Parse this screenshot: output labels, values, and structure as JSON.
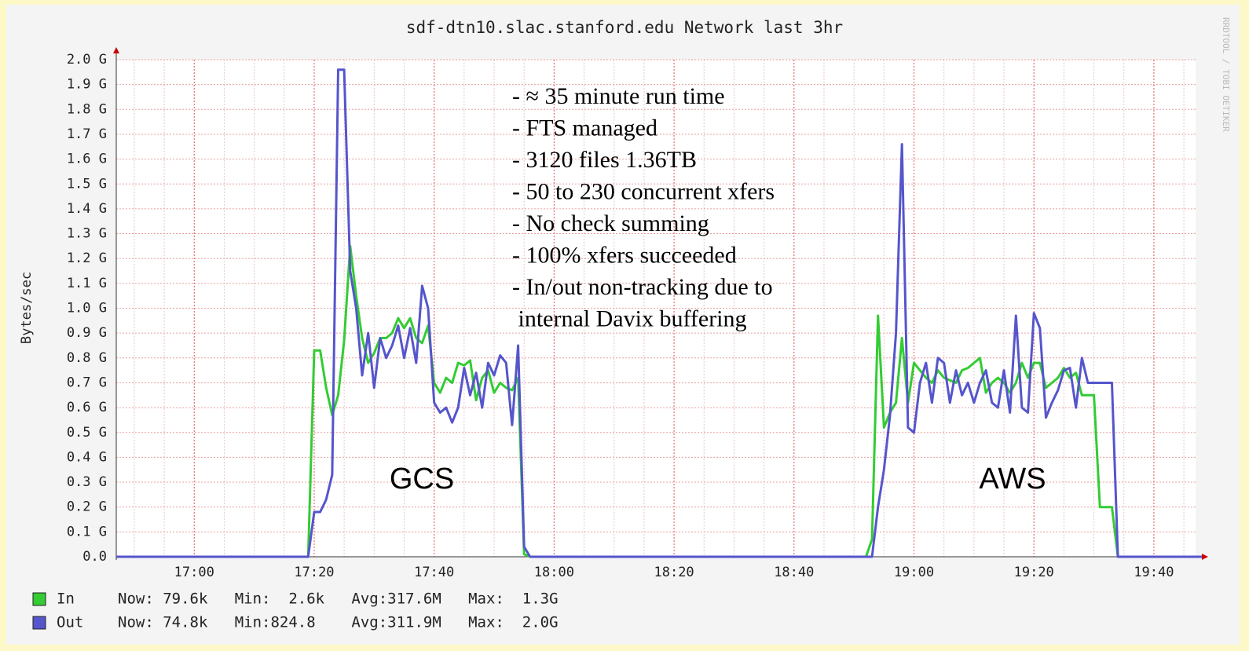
{
  "chart_data": {
    "type": "line",
    "title": "sdf-dtn10.slac.stanford.edu Network last 3hr",
    "y_label": "Bytes/sec",
    "side_text": "RRDTOOL / TOBI OETIKER",
    "xlim": [
      "16:47",
      "19:48"
    ],
    "xticks": [
      "17:00",
      "17:20",
      "17:40",
      "18:00",
      "18:20",
      "18:40",
      "19:00",
      "19:20",
      "19:40"
    ],
    "ylim": [
      0,
      2
    ],
    "yticks": [
      {
        "value": 0,
        "label": "0.0"
      },
      {
        "value": 0.1,
        "label": "0.1 G"
      },
      {
        "value": 0.2,
        "label": "0.2 G"
      },
      {
        "value": 0.3,
        "label": "0.3 G"
      },
      {
        "value": 0.4,
        "label": "0.4 G"
      },
      {
        "value": 0.5,
        "label": "0.5 G"
      },
      {
        "value": 0.6,
        "label": "0.6 G"
      },
      {
        "value": 0.7,
        "label": "0.7 G"
      },
      {
        "value": 0.8,
        "label": "0.8 G"
      },
      {
        "value": 0.9,
        "label": "0.9 G"
      },
      {
        "value": 1,
        "label": "1.0 G"
      },
      {
        "value": 1.1,
        "label": "1.1 G"
      },
      {
        "value": 1.2,
        "label": "1.2 G"
      },
      {
        "value": 1.3,
        "label": "1.3 G"
      },
      {
        "value": 1.4,
        "label": "1.4 G"
      },
      {
        "value": 1.5,
        "label": "1.5 G"
      },
      {
        "value": 1.6,
        "label": "1.6 G"
      },
      {
        "value": 1.7,
        "label": "1.7 G"
      },
      {
        "value": 1.8,
        "label": "1.8 G"
      },
      {
        "value": 1.9,
        "label": "1.9 G"
      },
      {
        "value": 2,
        "label": "2.0 G"
      }
    ],
    "grid": true,
    "x": [
      "16:47",
      "17:19",
      "17:20",
      "17:21",
      "17:22",
      "17:23",
      "17:24",
      "17:25",
      "17:26",
      "17:27",
      "17:28",
      "17:29",
      "17:30",
      "17:31",
      "17:32",
      "17:33",
      "17:34",
      "17:35",
      "17:36",
      "17:37",
      "17:38",
      "17:39",
      "17:40",
      "17:41",
      "17:42",
      "17:43",
      "17:44",
      "17:45",
      "17:46",
      "17:47",
      "17:48",
      "17:49",
      "17:50",
      "17:51",
      "17:52",
      "17:53",
      "17:54",
      "17:55",
      "17:56",
      "18:52",
      "18:53",
      "18:54",
      "18:55",
      "18:56",
      "18:57",
      "18:58",
      "18:59",
      "19:00",
      "19:01",
      "19:02",
      "19:03",
      "19:04",
      "19:05",
      "19:06",
      "19:07",
      "19:08",
      "19:09",
      "19:10",
      "19:11",
      "19:12",
      "19:13",
      "19:14",
      "19:15",
      "19:16",
      "19:17",
      "19:18",
      "19:19",
      "19:20",
      "19:21",
      "19:22",
      "19:23",
      "19:24",
      "19:25",
      "19:26",
      "19:27",
      "19:28",
      "19:29",
      "19:30",
      "19:31",
      "19:32",
      "19:33",
      "19:34",
      "19:48"
    ],
    "series": [
      {
        "name": "In",
        "color": "#33cc33",
        "stats": "Now: 79.6k   Min:  2.6k   Avg:317.6M   Max:  1.3G",
        "values": [
          0,
          0,
          0.83,
          0.83,
          0.68,
          0.57,
          0.65,
          0.87,
          1.25,
          1.05,
          0.88,
          0.78,
          0.82,
          0.88,
          0.88,
          0.9,
          0.96,
          0.92,
          0.96,
          0.88,
          0.86,
          0.93,
          0.7,
          0.66,
          0.72,
          0.7,
          0.78,
          0.77,
          0.79,
          0.63,
          0.72,
          0.75,
          0.66,
          0.7,
          0.68,
          0.67,
          0.72,
          0.01,
          0,
          0,
          0.07,
          0.97,
          0.52,
          0.58,
          0.62,
          0.88,
          0.62,
          0.78,
          0.75,
          0.72,
          0.7,
          0.75,
          0.72,
          0.71,
          0.7,
          0.75,
          0.76,
          0.78,
          0.8,
          0.66,
          0.7,
          0.72,
          0.7,
          0.66,
          0.7,
          0.78,
          0.72,
          0.78,
          0.78,
          0.68,
          0.7,
          0.72,
          0.76,
          0.72,
          0.74,
          0.65,
          0.65,
          0.65,
          0.2,
          0.2,
          0.2,
          0,
          0
        ]
      },
      {
        "name": "Out",
        "color": "#5555cc",
        "stats": "Now: 74.8k   Min:824.8    Avg:311.9M   Max:  2.0G",
        "values": [
          0,
          0,
          0.18,
          0.18,
          0.23,
          0.33,
          1.96,
          1.96,
          1.15,
          1.0,
          0.73,
          0.9,
          0.68,
          0.88,
          0.8,
          0.85,
          0.93,
          0.8,
          0.92,
          0.78,
          1.09,
          1.0,
          0.62,
          0.58,
          0.6,
          0.54,
          0.6,
          0.76,
          0.65,
          0.74,
          0.6,
          0.78,
          0.73,
          0.81,
          0.78,
          0.53,
          0.85,
          0.04,
          0,
          0,
          0,
          0.2,
          0.35,
          0.57,
          0.9,
          1.66,
          0.52,
          0.5,
          0.7,
          0.78,
          0.62,
          0.8,
          0.78,
          0.62,
          0.75,
          0.65,
          0.7,
          0.62,
          0.7,
          0.75,
          0.62,
          0.6,
          0.75,
          0.58,
          0.97,
          0.6,
          0.58,
          0.98,
          0.92,
          0.56,
          0.62,
          0.67,
          0.75,
          0.76,
          0.6,
          0.8,
          0.7,
          0.7,
          0.7,
          0.7,
          0.7,
          0,
          0
        ]
      }
    ],
    "annotations": [
      "- ≈ 35 minute run time",
      "- FTS managed",
      "- 3120 files 1.36TB",
      "- 50 to 230 concurrent xfers",
      "- No check summing",
      "- 100% xfers succeeded",
      "- In/out non-tracking due to",
      " internal Davix buffering"
    ],
    "region_labels": [
      "GCS",
      "AWS"
    ]
  }
}
